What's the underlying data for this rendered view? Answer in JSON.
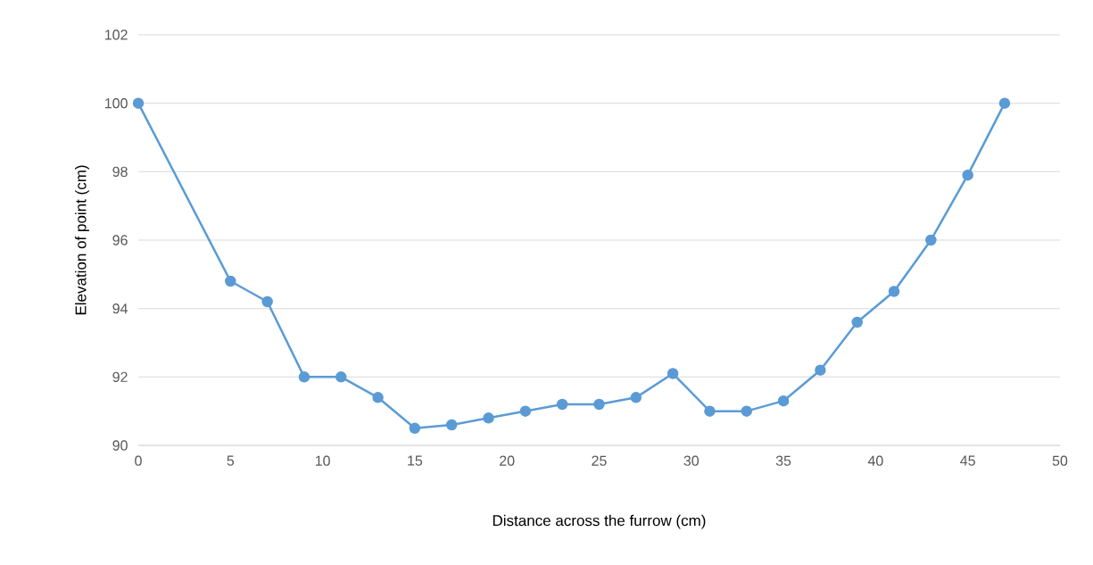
{
  "chart_data": {
    "type": "line",
    "xlabel": "Distance across the furrow (cm)",
    "ylabel": "Elevation of point (cm)",
    "x": [
      0,
      5,
      7,
      9,
      11,
      13,
      15,
      17,
      19,
      21,
      23,
      25,
      27,
      29,
      31,
      33,
      35,
      37,
      39,
      41,
      43,
      45,
      47
    ],
    "series": [
      {
        "color": "#5b9bd5",
        "values": [
          100,
          94.8,
          94.2,
          92.0,
          92.0,
          91.4,
          90.5,
          90.6,
          90.8,
          91.0,
          91.2,
          91.2,
          91.4,
          92.1,
          91.0,
          91.0,
          91.3,
          92.2,
          93.6,
          94.5,
          96.0,
          97.9,
          100
        ]
      }
    ],
    "xlim": [
      0,
      50
    ],
    "xticks": [
      0,
      5,
      10,
      15,
      20,
      25,
      30,
      35,
      40,
      45,
      50
    ],
    "ylim": [
      90,
      102
    ],
    "yticks": [
      90,
      92,
      94,
      96,
      98,
      100,
      102
    ],
    "grid": "y",
    "marker": "circle",
    "line_style": "solid"
  }
}
